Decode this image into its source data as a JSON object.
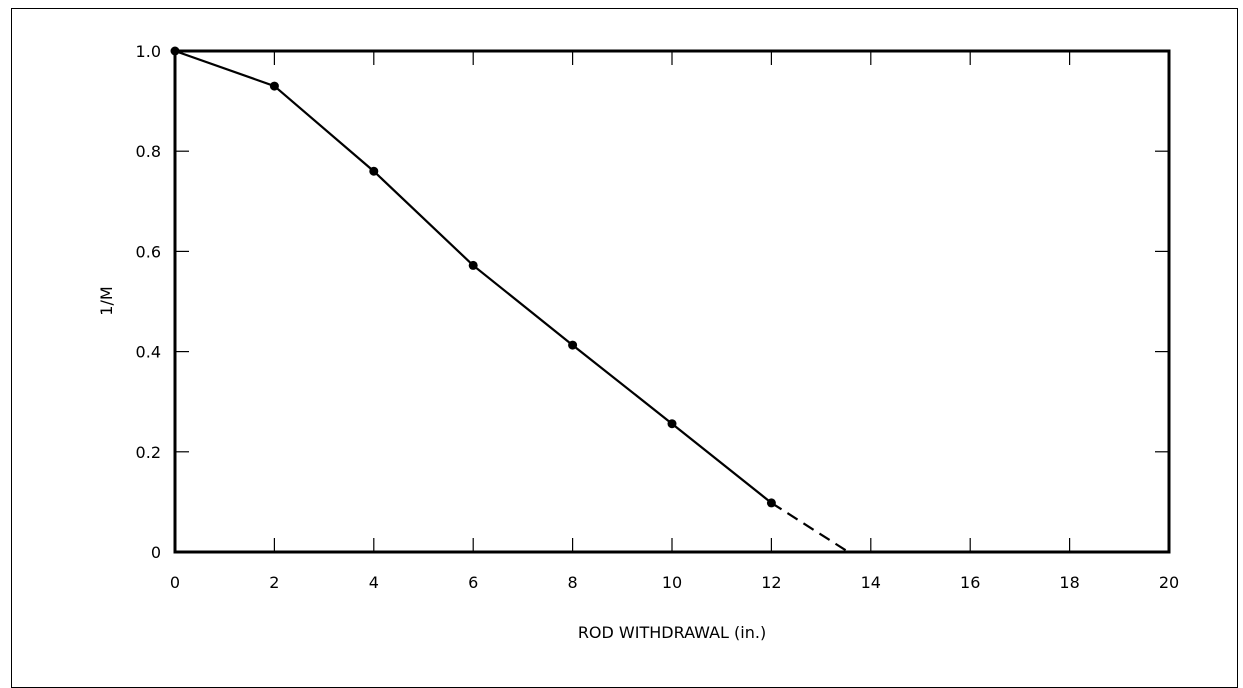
{
  "chart_data": {
    "type": "line",
    "title": "",
    "xlabel": "ROD WITHDRAWAL (in.)",
    "ylabel": "1/M",
    "xlim": [
      0,
      20
    ],
    "ylim": [
      0,
      1.0
    ],
    "grid": false,
    "x_ticks": [
      0,
      2,
      4,
      6,
      8,
      10,
      12,
      14,
      16,
      18,
      20
    ],
    "x_tick_labels": [
      "0",
      "2",
      "4",
      "6",
      "8",
      "10",
      "12",
      "14",
      "16",
      "18",
      "20"
    ],
    "y_ticks": [
      0,
      0.2,
      0.4,
      0.6,
      0.8,
      1.0
    ],
    "y_tick_labels": [
      "0",
      "0.2",
      "0.4",
      "0.6",
      "0.8",
      "1.0"
    ],
    "series": [
      {
        "x": [
          0,
          2,
          4,
          6,
          8,
          10,
          12
        ],
        "y": [
          1.0,
          0.93,
          0.76,
          0.572,
          0.413,
          0.256,
          0.098
        ],
        "style": "solid",
        "markers": true
      },
      {
        "x": [
          12,
          13.55
        ],
        "y": [
          0.098,
          0.0
        ],
        "style": "dashed",
        "markers": false
      }
    ],
    "colors": {
      "line": "#000000",
      "axes": "#000000"
    }
  }
}
